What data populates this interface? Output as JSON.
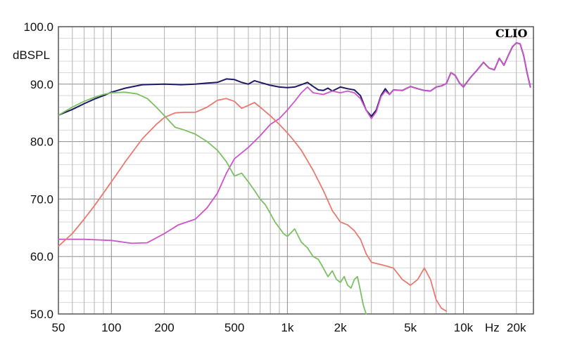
{
  "chart_data": {
    "type": "line",
    "brand": "CLIO",
    "ylabel": "dBSPL",
    "xunit": "Hz",
    "x_scale": "log",
    "xlim": [
      50,
      25000
    ],
    "ylim": [
      50,
      100
    ],
    "grid": true,
    "y_ticks": [
      {
        "value": 100,
        "label": "100.0"
      },
      {
        "value": 90,
        "label": "90.0"
      },
      {
        "value": 80,
        "label": "80.0"
      },
      {
        "value": 70,
        "label": "70.0"
      },
      {
        "value": 60,
        "label": "60.0"
      },
      {
        "value": 50,
        "label": "50.0"
      }
    ],
    "x_ticks": [
      {
        "value": 50,
        "label": "50"
      },
      {
        "value": 100,
        "label": "100"
      },
      {
        "value": 200,
        "label": "200"
      },
      {
        "value": 500,
        "label": "500"
      },
      {
        "value": 1000,
        "label": "1k"
      },
      {
        "value": 2000,
        "label": "2k"
      },
      {
        "value": 5000,
        "label": "5k"
      },
      {
        "value": 10000,
        "label": "10k"
      },
      {
        "value": 20000,
        "label": "20k"
      }
    ],
    "series": [
      {
        "color": "#1f1a66",
        "points": [
          [
            50,
            84.6
          ],
          [
            60,
            85.6
          ],
          [
            70,
            86.6
          ],
          [
            80,
            87.4
          ],
          [
            90,
            88.0
          ],
          [
            100,
            88.6
          ],
          [
            120,
            89.3
          ],
          [
            150,
            89.9
          ],
          [
            200,
            90.0
          ],
          [
            250,
            89.9
          ],
          [
            300,
            90.0
          ],
          [
            350,
            90.2
          ],
          [
            400,
            90.3
          ],
          [
            450,
            90.9
          ],
          [
            500,
            90.8
          ],
          [
            550,
            90.3
          ],
          [
            600,
            90.0
          ],
          [
            650,
            90.6
          ],
          [
            700,
            90.3
          ],
          [
            800,
            89.8
          ],
          [
            900,
            89.5
          ],
          [
            1000,
            89.4
          ],
          [
            1100,
            89.5
          ],
          [
            1200,
            89.9
          ],
          [
            1300,
            90.3
          ],
          [
            1400,
            89.6
          ],
          [
            1500,
            89.0
          ],
          [
            1600,
            88.9
          ],
          [
            1700,
            89.3
          ],
          [
            1800,
            88.8
          ],
          [
            2000,
            89.5
          ],
          [
            2200,
            89.2
          ],
          [
            2400,
            89.0
          ],
          [
            2600,
            88.0
          ],
          [
            2800,
            85.5
          ],
          [
            3000,
            84.4
          ],
          [
            3200,
            85.5
          ],
          [
            3400,
            88.0
          ],
          [
            3600,
            89.2
          ],
          [
            3800,
            88.2
          ],
          [
            4000,
            89.0
          ],
          [
            4500,
            88.9
          ],
          [
            5000,
            89.6
          ],
          [
            5500,
            89.2
          ],
          [
            6000,
            88.9
          ],
          [
            6500,
            88.8
          ],
          [
            7000,
            89.5
          ],
          [
            7500,
            89.7
          ],
          [
            8000,
            90.1
          ],
          [
            8500,
            92.0
          ],
          [
            9000,
            91.5
          ],
          [
            9500,
            90.2
          ],
          [
            10000,
            89.5
          ],
          [
            11000,
            91.2
          ],
          [
            12000,
            92.5
          ],
          [
            13000,
            93.8
          ],
          [
            14000,
            92.8
          ],
          [
            15000,
            92.5
          ],
          [
            16000,
            94.5
          ],
          [
            17000,
            93.3
          ],
          [
            18000,
            95.0
          ],
          [
            19000,
            96.5
          ],
          [
            20000,
            97.2
          ],
          [
            21000,
            97.0
          ],
          [
            22000,
            95.0
          ],
          [
            23000,
            92.0
          ],
          [
            24000,
            89.5
          ]
        ]
      },
      {
        "color": "#cc55cc",
        "points": [
          [
            50,
            63.0
          ],
          [
            70,
            63.0
          ],
          [
            100,
            62.8
          ],
          [
            130,
            62.3
          ],
          [
            160,
            62.4
          ],
          [
            200,
            64.0
          ],
          [
            240,
            65.5
          ],
          [
            300,
            66.5
          ],
          [
            350,
            68.5
          ],
          [
            400,
            71.0
          ],
          [
            450,
            74.5
          ],
          [
            500,
            77.0
          ],
          [
            600,
            79.0
          ],
          [
            700,
            81.0
          ],
          [
            800,
            83.0
          ],
          [
            900,
            84.0
          ],
          [
            1000,
            85.5
          ],
          [
            1100,
            87.0
          ],
          [
            1200,
            88.5
          ],
          [
            1300,
            89.5
          ],
          [
            1400,
            88.5
          ],
          [
            1600,
            88.2
          ],
          [
            1800,
            88.8
          ],
          [
            2000,
            88.5
          ],
          [
            2200,
            88.8
          ],
          [
            2400,
            88.5
          ],
          [
            2600,
            87.5
          ],
          [
            2800,
            85.5
          ],
          [
            3000,
            84.0
          ],
          [
            3200,
            85.2
          ],
          [
            3400,
            87.8
          ],
          [
            3600,
            88.8
          ],
          [
            3800,
            88.2
          ],
          [
            4000,
            89.0
          ],
          [
            4500,
            88.9
          ],
          [
            5000,
            89.6
          ],
          [
            5500,
            89.2
          ],
          [
            6000,
            88.9
          ],
          [
            6500,
            88.8
          ],
          [
            7000,
            89.5
          ],
          [
            7500,
            89.7
          ],
          [
            8000,
            90.1
          ],
          [
            8500,
            92.0
          ],
          [
            9000,
            91.5
          ],
          [
            9500,
            90.2
          ],
          [
            10000,
            89.5
          ],
          [
            11000,
            91.2
          ],
          [
            12000,
            92.5
          ],
          [
            13000,
            93.8
          ],
          [
            14000,
            92.8
          ],
          [
            15000,
            92.5
          ],
          [
            16000,
            94.5
          ],
          [
            17000,
            93.3
          ],
          [
            18000,
            95.0
          ],
          [
            19000,
            96.5
          ],
          [
            20000,
            97.2
          ],
          [
            21000,
            97.0
          ],
          [
            22000,
            95.0
          ],
          [
            23000,
            92.0
          ],
          [
            24000,
            89.5
          ]
        ]
      },
      {
        "color": "#e87a70",
        "points": [
          [
            50,
            61.8
          ],
          [
            60,
            64.0
          ],
          [
            70,
            66.5
          ],
          [
            80,
            68.8
          ],
          [
            90,
            71.0
          ],
          [
            100,
            73.0
          ],
          [
            120,
            76.5
          ],
          [
            150,
            80.5
          ],
          [
            180,
            83.0
          ],
          [
            200,
            84.2
          ],
          [
            230,
            85.0
          ],
          [
            260,
            85.1
          ],
          [
            300,
            85.1
          ],
          [
            350,
            86.0
          ],
          [
            400,
            87.2
          ],
          [
            450,
            87.5
          ],
          [
            500,
            87.0
          ],
          [
            550,
            85.8
          ],
          [
            600,
            86.3
          ],
          [
            650,
            86.8
          ],
          [
            700,
            86.0
          ],
          [
            800,
            84.5
          ],
          [
            900,
            83.0
          ],
          [
            1000,
            81.5
          ],
          [
            1100,
            80.0
          ],
          [
            1200,
            78.5
          ],
          [
            1400,
            75.0
          ],
          [
            1600,
            71.5
          ],
          [
            1800,
            68.0
          ],
          [
            2000,
            66.0
          ],
          [
            2200,
            65.5
          ],
          [
            2400,
            64.5
          ],
          [
            2600,
            63.0
          ],
          [
            2800,
            60.5
          ],
          [
            3000,
            59.0
          ],
          [
            3500,
            58.5
          ],
          [
            4000,
            58.0
          ],
          [
            4500,
            56.0
          ],
          [
            5000,
            55.0
          ],
          [
            5500,
            56.0
          ],
          [
            6000,
            58.0
          ],
          [
            6500,
            56.0
          ],
          [
            7000,
            52.5
          ],
          [
            7500,
            51.0
          ],
          [
            8000,
            50.5
          ]
        ]
      },
      {
        "color": "#7cc064",
        "points": [
          [
            50,
            84.6
          ],
          [
            60,
            86.0
          ],
          [
            70,
            87.0
          ],
          [
            80,
            87.7
          ],
          [
            90,
            88.2
          ],
          [
            100,
            88.5
          ],
          [
            120,
            88.6
          ],
          [
            140,
            88.3
          ],
          [
            160,
            87.5
          ],
          [
            180,
            86.0
          ],
          [
            200,
            84.5
          ],
          [
            230,
            82.5
          ],
          [
            260,
            82.0
          ],
          [
            300,
            81.3
          ],
          [
            350,
            80.0
          ],
          [
            400,
            78.5
          ],
          [
            450,
            76.5
          ],
          [
            500,
            74.0
          ],
          [
            550,
            74.5
          ],
          [
            600,
            73.0
          ],
          [
            650,
            71.5
          ],
          [
            700,
            70.0
          ],
          [
            750,
            69.0
          ],
          [
            800,
            67.5
          ],
          [
            850,
            66.0
          ],
          [
            900,
            65.0
          ],
          [
            950,
            64.0
          ],
          [
            1000,
            63.5
          ],
          [
            1100,
            64.8
          ],
          [
            1200,
            62.5
          ],
          [
            1300,
            61.5
          ],
          [
            1400,
            60.0
          ],
          [
            1500,
            59.5
          ],
          [
            1600,
            58.0
          ],
          [
            1700,
            56.5
          ],
          [
            1800,
            57.5
          ],
          [
            1900,
            56.0
          ],
          [
            2000,
            55.5
          ],
          [
            2100,
            56.5
          ],
          [
            2200,
            55.0
          ],
          [
            2300,
            54.5
          ],
          [
            2400,
            56.0
          ],
          [
            2500,
            56.5
          ],
          [
            2600,
            54.0
          ],
          [
            2700,
            51.5
          ],
          [
            2800,
            50.0
          ]
        ]
      }
    ]
  }
}
